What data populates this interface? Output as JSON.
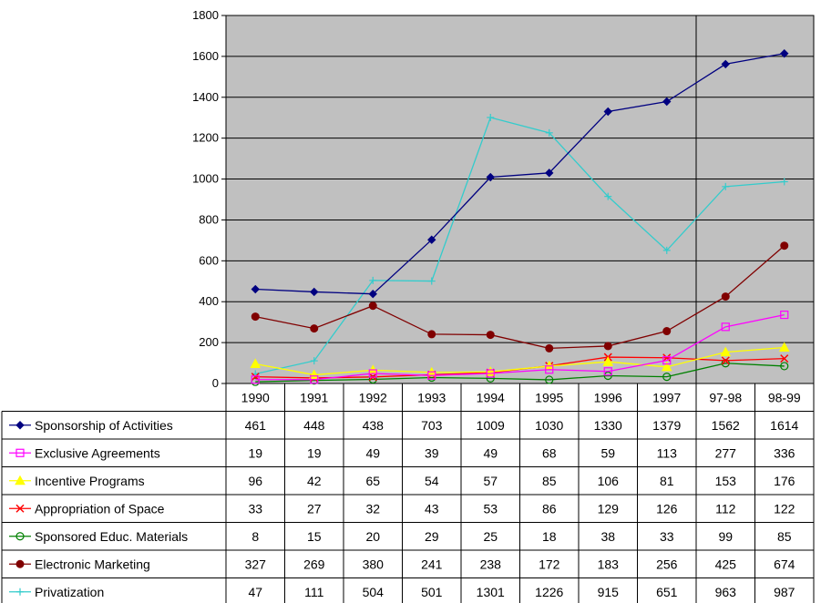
{
  "chart_data": {
    "type": "line",
    "title": "",
    "xlabel": "",
    "ylabel": "",
    "categories": [
      "1990",
      "1991",
      "1992",
      "1993",
      "1994",
      "1995",
      "1996",
      "1997",
      "97-98",
      "98-99"
    ],
    "ylim": [
      0,
      1800
    ],
    "yticks": [
      0,
      200,
      400,
      600,
      800,
      1000,
      1200,
      1400,
      1600,
      1800
    ],
    "grid": true,
    "legend": "data-table-bottom",
    "plot_background": "#c0c0c0",
    "series": [
      {
        "name": "Sponsorship of Activities",
        "color": "#000080",
        "marker": "diamond",
        "values": [
          461,
          448,
          438,
          703,
          1009,
          1030,
          1330,
          1379,
          1562,
          1614
        ]
      },
      {
        "name": "Exclusive Agreements",
        "color": "#ff00ff",
        "marker": "square",
        "values": [
          19,
          19,
          49,
          39,
          49,
          68,
          59,
          113,
          277,
          336
        ]
      },
      {
        "name": "Incentive Programs",
        "color": "#ffff00",
        "marker": "triangle",
        "values": [
          96,
          42,
          65,
          54,
          57,
          85,
          106,
          81,
          153,
          176
        ]
      },
      {
        "name": "Appropriation of Space",
        "color": "#ff0000",
        "marker": "x",
        "values": [
          33,
          27,
          32,
          43,
          53,
          86,
          129,
          126,
          112,
          122
        ]
      },
      {
        "name": "Sponsored Educ. Materials",
        "color": "#008000",
        "marker": "circle",
        "values": [
          8,
          15,
          20,
          29,
          25,
          18,
          38,
          33,
          99,
          85
        ]
      },
      {
        "name": "Electronic Marketing",
        "color": "#800000",
        "marker": "dot",
        "values": [
          327,
          269,
          380,
          241,
          238,
          172,
          183,
          256,
          425,
          674
        ]
      },
      {
        "name": "Privatization",
        "color": "#33cccc",
        "marker": "plus",
        "values": [
          47,
          111,
          504,
          501,
          1301,
          1226,
          915,
          651,
          963,
          987
        ]
      }
    ]
  }
}
